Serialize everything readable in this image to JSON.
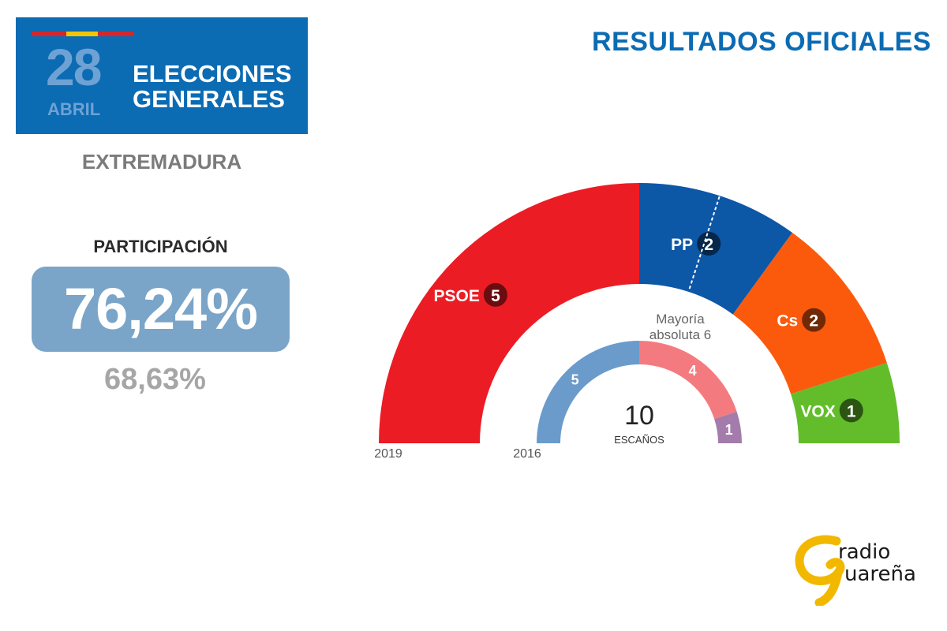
{
  "header": {
    "day": "28",
    "month": "ABRIL",
    "title_line1": "ELECCIONES",
    "title_line2": "GENERALES",
    "results_title": "RESULTADOS OFICIALES"
  },
  "region": "EXTREMADURA",
  "participation": {
    "label": "PARTICIPACIÓN",
    "current": "76,24%",
    "previous": "68,63%"
  },
  "logo": {
    "line1": "radio",
    "line2": "uareña",
    "initial": "G"
  },
  "colors": {
    "banner": "#0b6bb3",
    "psoe": "#ec1c24",
    "pp": "#0d57a7",
    "cs": "#fb5a0c",
    "vox": "#63bd2b",
    "psoe_2016": "#f37b80",
    "pp_2016": "#6b9bcb",
    "podemos_2016": "#a47cab"
  },
  "chart_data": {
    "type": "pie",
    "subtype": "semicircle-parliament",
    "total_seats": 10,
    "total_label": "ESCAÑOS",
    "majority_label_line1": "Mayoría",
    "majority_label_line2": "absoluta 6",
    "majority": 6,
    "rings": [
      {
        "year": "2019",
        "parties": [
          {
            "name": "PSOE",
            "seats": 5,
            "color": "#ec1c24"
          },
          {
            "name": "PP",
            "seats": 2,
            "color": "#0d57a7"
          },
          {
            "name": "Cs",
            "seats": 2,
            "color": "#fb5a0c"
          },
          {
            "name": "VOX",
            "seats": 1,
            "color": "#63bd2b"
          }
        ]
      },
      {
        "year": "2016",
        "parties": [
          {
            "seats": 5,
            "color": "#6b9bcb"
          },
          {
            "seats": 4,
            "color": "#f37b80"
          },
          {
            "seats": 1,
            "color": "#a47cab"
          }
        ]
      }
    ]
  }
}
